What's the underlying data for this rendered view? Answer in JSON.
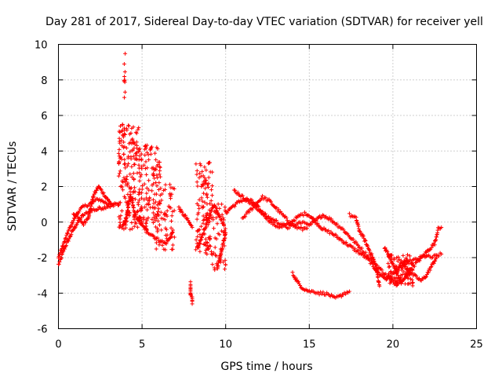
{
  "chart_data": {
    "type": "scatter",
    "title": "Day 281 of 2017, Sidereal Day-to-day VTEC variation (SDTVAR) for receiver yell",
    "xlabel": "GPS time / hours",
    "ylabel": "SDTVAR / TECUs",
    "xlim": [
      0,
      25
    ],
    "ylim": [
      -6,
      10
    ],
    "xticks": [
      0,
      5,
      10,
      15,
      20,
      25
    ],
    "yticks": [
      -6,
      -4,
      -2,
      0,
      2,
      4,
      6,
      8,
      10
    ],
    "grid": true,
    "marker": "+",
    "color": "#ff0000",
    "series": [
      {
        "name": "SDTVAR",
        "segments": [
          {
            "x": [
              0.0,
              0.1,
              0.2,
              0.3,
              0.5,
              0.7,
              0.9,
              1.1,
              1.3,
              1.5,
              1.7,
              1.9,
              2.1,
              2.3,
              2.5,
              2.7,
              2.9,
              3.1,
              3.3,
              3.5,
              3.7
            ],
            "y": [
              -2.4,
              -2.2,
              -1.9,
              -1.6,
              -1.2,
              -0.8,
              -0.4,
              -0.1,
              0.2,
              0.4,
              0.5,
              0.6,
              0.7,
              0.7,
              0.8,
              0.8,
              0.9,
              0.9,
              1.0,
              1.0,
              1.1
            ]
          },
          {
            "x": [
              0.0,
              0.2,
              0.4,
              0.6,
              0.8,
              1.0,
              1.2,
              1.4,
              1.6,
              1.8,
              2.0,
              2.2,
              2.4,
              2.6,
              2.8,
              3.0
            ],
            "y": [
              -2.0,
              -1.5,
              -1.0,
              -0.5,
              -0.1,
              0.3,
              0.6,
              0.8,
              0.9,
              1.0,
              1.1,
              1.2,
              1.3,
              1.2,
              1.1,
              1.0
            ]
          },
          {
            "x": [
              0.9,
              1.2,
              1.5,
              1.8,
              2.1,
              2.4,
              2.7,
              3.0,
              3.3
            ],
            "y": [
              0.5,
              0.2,
              -0.1,
              0.3,
              1.5,
              2.0,
              1.6,
              1.2,
              0.9
            ]
          },
          {
            "x": [
              3.8,
              3.9,
              4.0,
              4.1,
              4.2,
              4.3,
              4.4,
              4.5
            ],
            "y": [
              -0.3,
              -0.2,
              0.0,
              0.4,
              1.0,
              1.5,
              1.2,
              0.8
            ]
          },
          {
            "x": [
              4.5,
              4.6,
              4.8,
              5.0,
              5.2,
              5.4,
              5.6,
              5.8,
              6.0,
              6.2,
              6.4,
              6.6,
              6.8
            ],
            "y": [
              0.6,
              0.4,
              0.1,
              -0.2,
              -0.4,
              -0.6,
              -0.7,
              -0.9,
              -1.0,
              -1.1,
              -1.2,
              -1.0,
              -0.6
            ]
          },
          {
            "x": [
              7.2,
              7.4,
              7.6,
              7.8,
              8.0
            ],
            "y": [
              0.8,
              0.5,
              0.3,
              0.0,
              -0.3
            ]
          },
          {
            "x": [
              7.9,
              7.9,
              7.9,
              7.9,
              8.0,
              8.0
            ],
            "y": [
              -3.4,
              -3.7,
              -3.9,
              -4.1,
              -4.3,
              -4.6
            ]
          },
          {
            "x": [
              8.3,
              8.5,
              8.7,
              8.9,
              9.1,
              9.3,
              9.5,
              9.7,
              9.9
            ],
            "y": [
              -1.5,
              -1.0,
              -0.5,
              0.0,
              0.5,
              1.0,
              0.6,
              0.2,
              -0.2
            ]
          },
          {
            "x": [
              9.5,
              9.6,
              9.7,
              9.8,
              9.9,
              10.0
            ],
            "y": [
              -2.6,
              -2.2,
              -1.8,
              -1.4,
              -1.0,
              -0.6
            ]
          },
          {
            "x": [
              10.0,
              10.3,
              10.6,
              10.9,
              11.2,
              11.5,
              11.8,
              12.1,
              12.4,
              12.7,
              13.0,
              13.3,
              13.6,
              13.9,
              14.2,
              14.5,
              14.8,
              15.1,
              15.4,
              15.7,
              16.0,
              16.3,
              16.6,
              16.9,
              17.2,
              17.5,
              17.8,
              18.1,
              18.4,
              18.7,
              19.0,
              19.3,
              19.6,
              19.9,
              20.2,
              20.5,
              20.8,
              21.1,
              21.4,
              21.7,
              22.0,
              22.3,
              22.6,
              22.9
            ],
            "y": [
              0.5,
              0.8,
              1.0,
              1.2,
              1.3,
              1.2,
              1.0,
              0.6,
              0.3,
              0.0,
              -0.2,
              -0.3,
              -0.2,
              0.0,
              0.2,
              0.4,
              0.5,
              0.3,
              0.0,
              -0.3,
              -0.5,
              -0.6,
              -0.8,
              -1.0,
              -1.2,
              -1.4,
              -1.6,
              -1.8,
              -2.0,
              -2.3,
              -2.7,
              -3.0,
              -3.2,
              -3.0,
              -2.8,
              -2.5,
              -2.3,
              -2.2,
              -2.1,
              -2.0,
              -1.9,
              -2.0,
              -1.9,
              -1.8
            ]
          },
          {
            "x": [
              11.0,
              11.4,
              11.8,
              12.2,
              12.6,
              13.0,
              13.4,
              13.8,
              14.2,
              14.6,
              15.0,
              15.4,
              15.8,
              16.2,
              16.6,
              17.0,
              17.4,
              17.8,
              18.2,
              18.6,
              19.0,
              19.4,
              19.8,
              20.2,
              20.6,
              21.0
            ],
            "y": [
              0.2,
              0.6,
              1.0,
              1.4,
              1.2,
              0.8,
              0.4,
              0.0,
              -0.3,
              -0.4,
              -0.2,
              0.1,
              0.4,
              0.2,
              -0.1,
              -0.4,
              -0.8,
              -1.2,
              -1.6,
              -2.0,
              -2.4,
              -2.8,
              -3.2,
              -3.5,
              -3.2,
              -2.8
            ]
          },
          {
            "x": [
              10.5,
              10.9,
              11.3,
              11.7,
              12.1,
              12.5,
              12.9,
              13.3,
              13.7,
              14.1,
              14.5,
              14.9
            ],
            "y": [
              1.8,
              1.5,
              1.2,
              0.9,
              0.6,
              0.3,
              0.1,
              -0.1,
              -0.3,
              -0.2,
              0.0,
              -0.1
            ]
          },
          {
            "x": [
              14.0,
              14.2,
              14.4,
              14.6,
              14.8,
              15.0,
              15.3,
              15.6,
              15.9,
              16.2,
              16.5,
              16.8,
              17.1,
              17.4
            ],
            "y": [
              -2.9,
              -3.2,
              -3.5,
              -3.7,
              -3.8,
              -3.9,
              -3.9,
              -4.0,
              -4.0,
              -4.1,
              -4.3,
              -4.2,
              -4.0,
              -3.9
            ]
          },
          {
            "x": [
              17.4,
              17.6,
              17.8,
              18.0,
              18.2,
              18.4,
              18.6,
              18.8,
              19.0,
              19.2
            ],
            "y": [
              0.4,
              0.3,
              0.2,
              -0.5,
              -0.8,
              -1.2,
              -1.6,
              -2.0,
              -2.6,
              -3.6
            ]
          },
          {
            "x": [
              19.5,
              19.7,
              19.9,
              20.1,
              20.3,
              20.5,
              20.7,
              20.9,
              21.1,
              21.3,
              21.5,
              21.7,
              21.9,
              22.1,
              22.3,
              22.5,
              22.7,
              22.9
            ],
            "y": [
              -1.4,
              -1.8,
              -2.2,
              -2.6,
              -3.0,
              -3.4,
              -3.2,
              -2.9,
              -2.6,
              -2.4,
              -2.2,
              -2.0,
              -1.8,
              -1.6,
              -1.4,
              -1.2,
              -0.4,
              -0.3
            ]
          },
          {
            "x": [
              20.5,
              20.8,
              21.1,
              21.4,
              21.7,
              22.0,
              22.3,
              22.6
            ],
            "y": [
              -2.2,
              -2.6,
              -2.9,
              -3.1,
              -3.3,
              -3.0,
              -2.5,
              -2.0
            ]
          }
        ],
        "bursts": [
          {
            "x0": 3.6,
            "x1": 4.8,
            "y0": -0.5,
            "y1": 5.5,
            "n": 170
          },
          {
            "x0": 3.9,
            "x1": 4.0,
            "y0": 6.0,
            "y1": 9.5,
            "n": 10
          },
          {
            "x0": 4.8,
            "x1": 6.1,
            "y0": -0.6,
            "y1": 4.4,
            "n": 150
          },
          {
            "x0": 5.8,
            "x1": 7.0,
            "y0": -1.6,
            "y1": 2.2,
            "n": 60
          },
          {
            "x0": 8.2,
            "x1": 9.2,
            "y0": -1.8,
            "y1": 3.4,
            "n": 120
          },
          {
            "x0": 9.2,
            "x1": 10.0,
            "y0": -2.7,
            "y1": 1.2,
            "n": 50
          },
          {
            "x0": 19.7,
            "x1": 21.2,
            "y0": -3.6,
            "y1": -1.8,
            "n": 90
          }
        ]
      }
    ]
  }
}
